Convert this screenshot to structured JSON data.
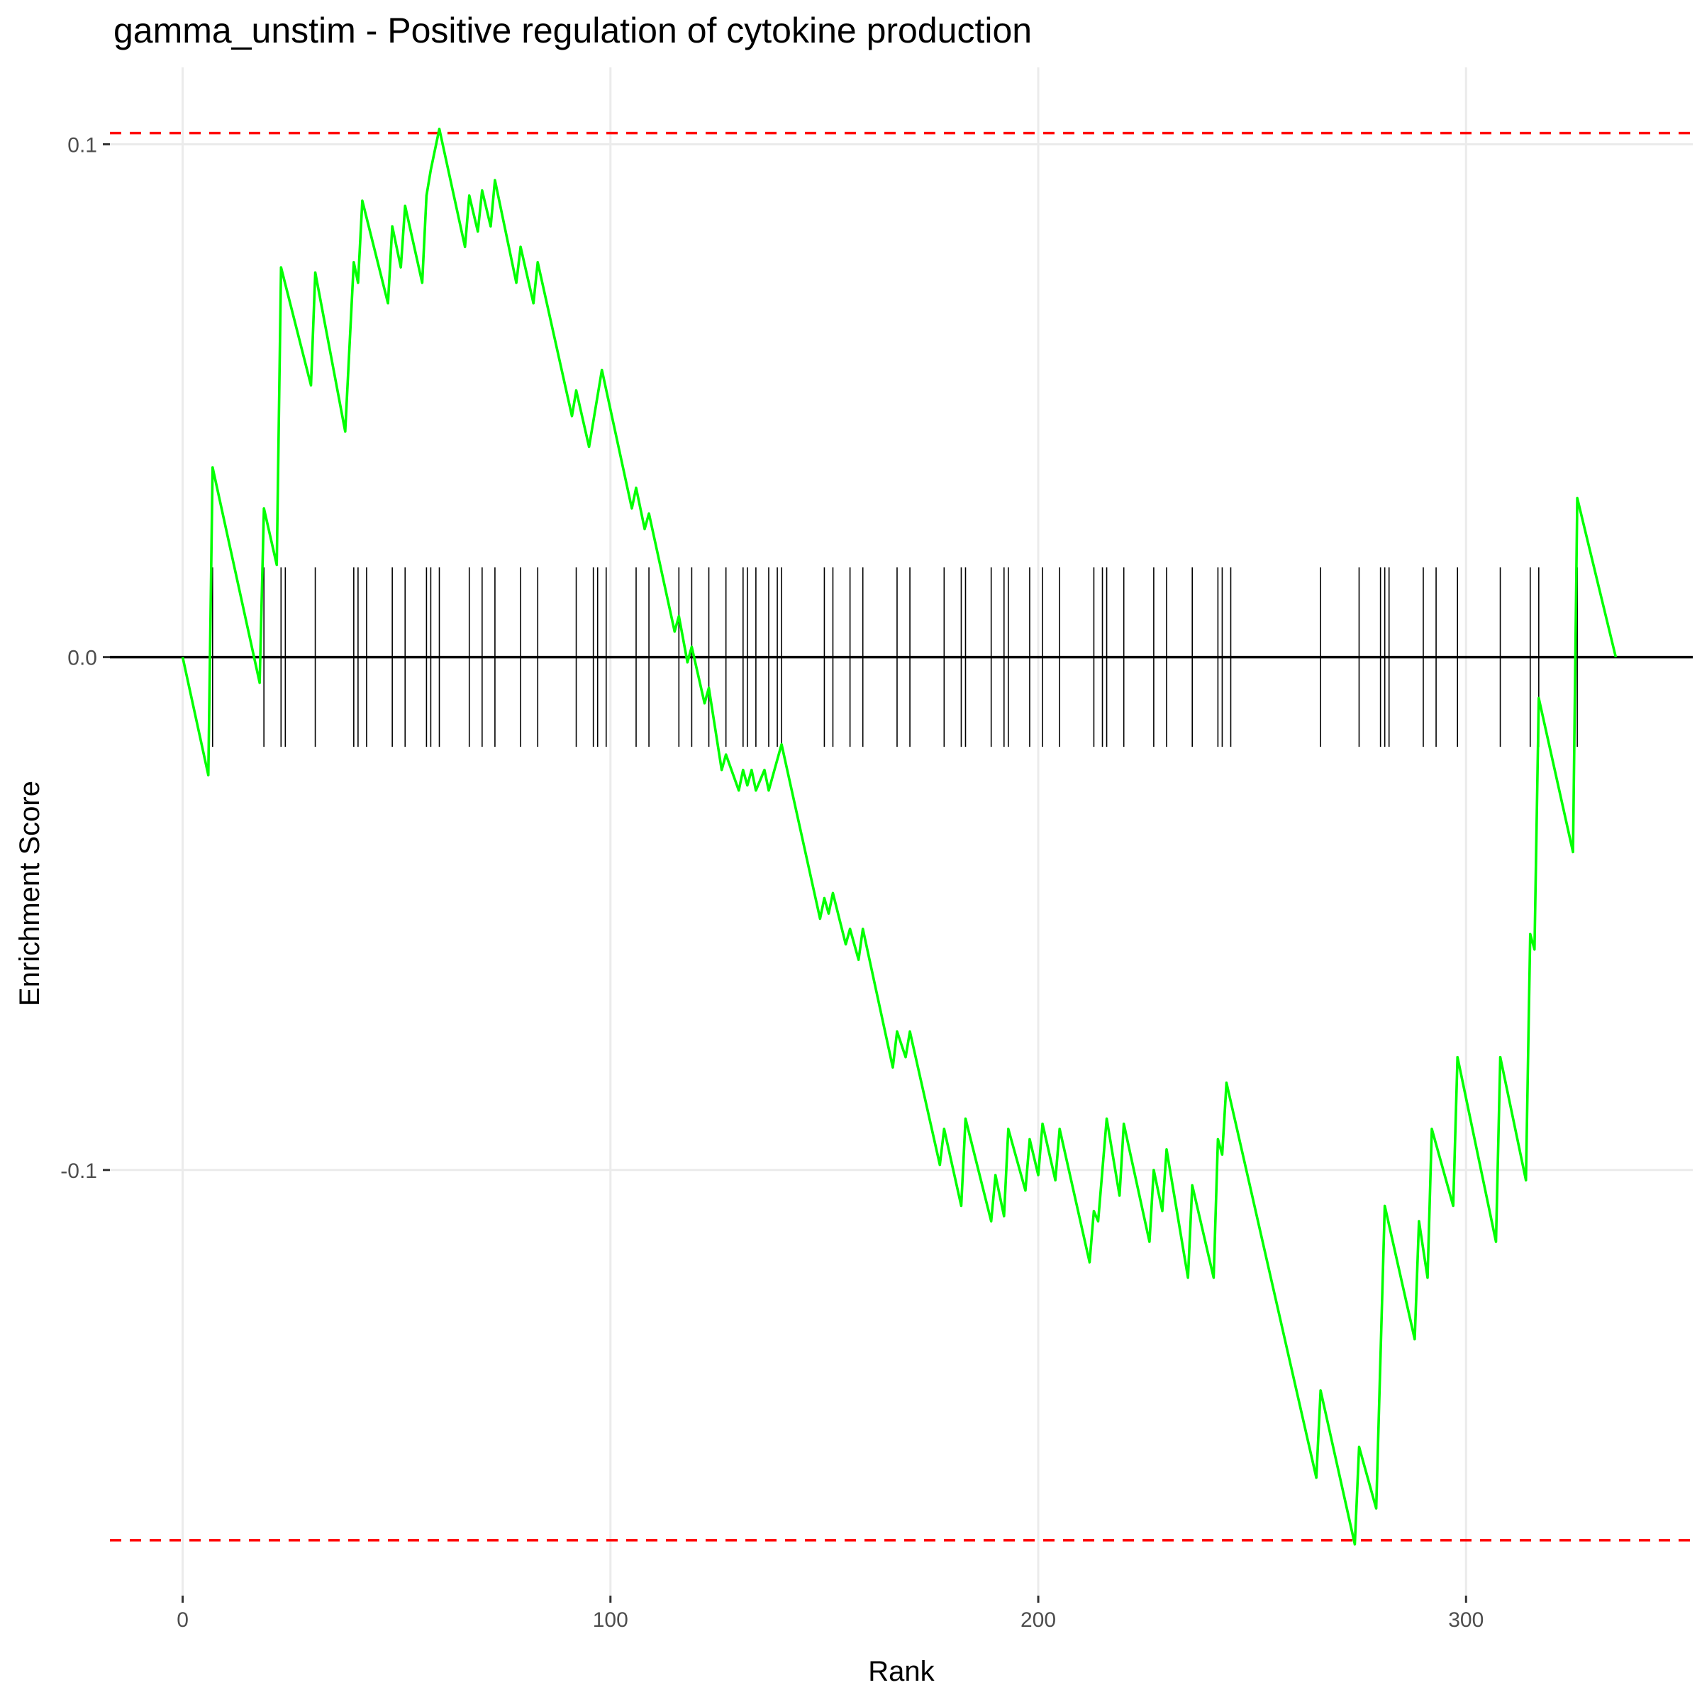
{
  "chart_data": {
    "type": "line",
    "title": "gamma_unstim - Positive regulation of cytokine production",
    "xlabel": "Rank",
    "ylabel": "Enrichment Score",
    "xlim": [
      -17,
      353
    ],
    "ylim": [
      -0.183,
      0.115
    ],
    "x_ticks": [
      {
        "value": 0,
        "label": "0"
      },
      {
        "value": 100,
        "label": "100"
      },
      {
        "value": 200,
        "label": "200"
      },
      {
        "value": 300,
        "label": "300"
      }
    ],
    "y_ticks": [
      {
        "value": 0.1,
        "label": "0.1"
      },
      {
        "value": 0.0,
        "label": "0.0"
      },
      {
        "value": -0.1,
        "label": "-0.1"
      }
    ],
    "minor_x_gridlines": [
      50,
      150,
      250,
      350
    ],
    "minor_y_gridlines": [
      0.05,
      -0.05,
      -0.15
    ],
    "reference_lines": {
      "zero": 0.0,
      "max_es": 0.1022,
      "min_es": -0.1722,
      "max_es_color": "#ff0000",
      "min_es_color": "#ff0000",
      "style": "dashed"
    },
    "hit_band": {
      "top": 0.0175,
      "bottom": -0.0175,
      "color": "#000000"
    },
    "hit_positions": [
      7,
      19,
      23,
      24,
      31,
      40,
      41,
      43,
      49,
      52,
      57,
      58,
      60,
      67,
      70,
      73,
      79,
      83,
      92,
      96,
      97,
      99,
      106,
      109,
      116,
      119,
      123,
      127,
      131,
      132,
      134,
      137,
      139,
      140,
      150,
      152,
      156,
      159,
      167,
      170,
      178,
      182,
      183,
      189,
      192,
      193,
      198,
      201,
      205,
      213,
      215,
      216,
      220,
      227,
      230,
      236,
      242,
      243,
      245,
      266,
      275,
      280,
      281,
      282,
      290,
      293,
      298,
      308,
      315,
      317,
      326
    ],
    "line_color": "#00ff00",
    "series": [
      {
        "x": [
          0,
          6,
          7,
          18,
          19,
          22,
          23,
          30,
          31,
          38,
          40,
          41,
          42,
          48,
          49,
          51,
          52,
          56,
          57,
          58,
          60,
          66,
          67,
          69,
          70,
          72,
          73,
          78,
          79,
          82,
          83,
          91,
          92,
          95,
          98,
          105,
          106,
          108,
          109,
          115,
          116,
          118,
          119,
          122,
          123,
          126,
          127,
          130,
          131,
          132,
          133,
          134,
          136,
          137,
          138,
          140,
          149,
          150,
          151,
          152,
          155,
          156,
          158,
          159,
          166,
          167,
          169,
          170,
          177,
          178,
          182,
          183,
          189,
          190,
          192,
          193,
          197,
          198,
          200,
          201,
          204,
          205,
          212,
          213,
          214,
          215,
          216,
          219,
          220,
          226,
          227,
          229,
          230,
          235,
          236,
          241,
          242,
          243,
          244,
          265,
          266,
          274,
          275,
          279,
          281,
          288,
          289,
          291,
          292,
          297,
          298,
          307,
          308,
          314,
          315,
          316,
          317,
          325,
          326,
          335
        ],
        "y": [
          0.0,
          -0.023,
          0.037,
          -0.005,
          0.029,
          0.018,
          0.076,
          0.053,
          0.075,
          0.044,
          0.077,
          0.073,
          0.089,
          0.069,
          0.084,
          0.076,
          0.088,
          0.073,
          0.09,
          0.095,
          0.103,
          0.08,
          0.09,
          0.083,
          0.091,
          0.084,
          0.093,
          0.073,
          0.08,
          0.069,
          0.077,
          0.047,
          0.052,
          0.041,
          0.056,
          0.029,
          0.033,
          0.025,
          0.028,
          0.005,
          0.008,
          -0.001,
          0.002,
          -0.009,
          -0.006,
          -0.022,
          -0.019,
          -0.026,
          -0.022,
          -0.025,
          -0.022,
          -0.026,
          -0.022,
          -0.026,
          -0.023,
          -0.017,
          -0.051,
          -0.047,
          -0.05,
          -0.046,
          -0.056,
          -0.053,
          -0.059,
          -0.053,
          -0.08,
          -0.073,
          -0.078,
          -0.073,
          -0.099,
          -0.092,
          -0.107,
          -0.09,
          -0.11,
          -0.101,
          -0.109,
          -0.092,
          -0.104,
          -0.094,
          -0.101,
          -0.091,
          -0.102,
          -0.092,
          -0.118,
          -0.108,
          -0.11,
          -0.1,
          -0.09,
          -0.105,
          -0.091,
          -0.114,
          -0.1,
          -0.108,
          -0.096,
          -0.121,
          -0.103,
          -0.121,
          -0.094,
          -0.097,
          -0.083,
          -0.16,
          -0.143,
          -0.173,
          -0.154,
          -0.166,
          -0.107,
          -0.133,
          -0.11,
          -0.121,
          -0.092,
          -0.107,
          -0.078,
          -0.114,
          -0.078,
          -0.102,
          -0.054,
          -0.057,
          -0.008,
          -0.038,
          0.031,
          0.0
        ]
      }
    ]
  }
}
